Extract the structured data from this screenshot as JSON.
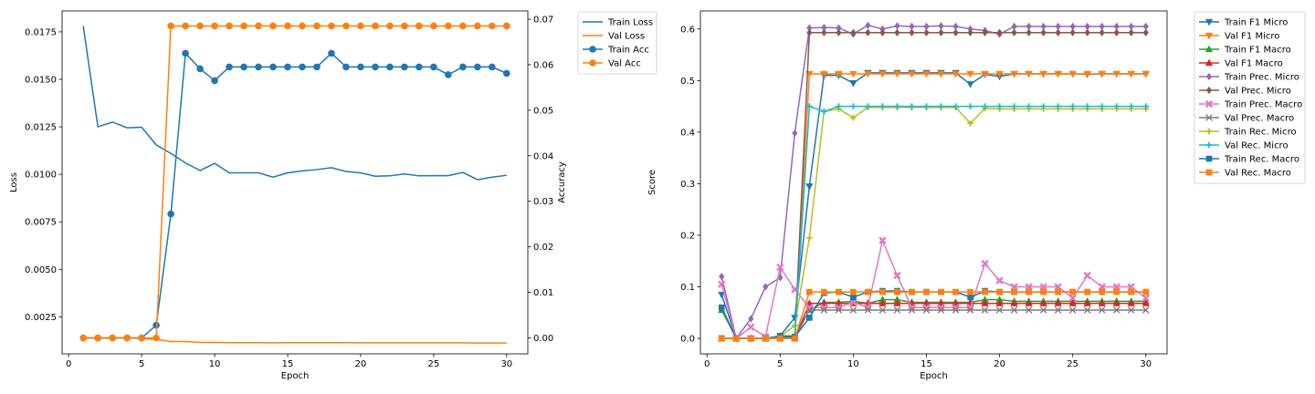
{
  "chart_data": [
    {
      "type": "line",
      "xlabel": "Epoch",
      "ylabel": "Loss",
      "y2label": "Accuracy",
      "xlim": [
        -0.45,
        31.45
      ],
      "ylim": [
        0.00055,
        0.0186
      ],
      "y2lim": [
        -0.0035,
        0.0718
      ],
      "xticks": [
        0,
        5,
        10,
        15,
        20,
        25,
        30
      ],
      "yticks": [
        0.0025,
        0.005,
        0.0075,
        0.01,
        0.0125,
        0.015,
        0.0175
      ],
      "ytick_labels": [
        "0.0025",
        "0.0050",
        "0.0075",
        "0.0100",
        "0.0125",
        "0.0150",
        "0.0175"
      ],
      "y2ticks": [
        0,
        0.01,
        0.02,
        0.03,
        0.04,
        0.05,
        0.06,
        0.07
      ],
      "y2tick_labels": [
        "0.00",
        "0.01",
        "0.02",
        "0.03",
        "0.04",
        "0.05",
        "0.06",
        "0.07"
      ],
      "legend_position": "outside upper right",
      "x": [
        1,
        2,
        3,
        4,
        5,
        6,
        7,
        8,
        9,
        10,
        11,
        12,
        13,
        14,
        15,
        16,
        17,
        18,
        19,
        20,
        21,
        22,
        23,
        24,
        25,
        26,
        27,
        28,
        29,
        30
      ],
      "series": [
        {
          "name": "Train Loss",
          "axis": "left",
          "color": "#1f77b4",
          "marker": "none",
          "values": [
            0.0178,
            0.0125,
            0.01275,
            0.01245,
            0.01248,
            0.01155,
            0.0111,
            0.0106,
            0.0102,
            0.01058,
            0.01008,
            0.01008,
            0.01008,
            0.00985,
            0.01008,
            0.01018,
            0.01025,
            0.01035,
            0.01015,
            0.01008,
            0.0099,
            0.00992,
            0.01002,
            0.00992,
            0.00993,
            0.00993,
            0.0101,
            0.00972,
            0.00985,
            0.00995
          ]
        },
        {
          "name": "Val Loss",
          "axis": "left",
          "color": "#ff7f0e",
          "marker": "none",
          "values": [
            0.00138,
            0.00138,
            0.00138,
            0.0014,
            0.00135,
            0.00132,
            0.0012,
            0.0012,
            0.00115,
            0.00115,
            0.00114,
            0.00114,
            0.00114,
            0.00113,
            0.00114,
            0.00114,
            0.00114,
            0.00114,
            0.00114,
            0.00113,
            0.00113,
            0.00113,
            0.00113,
            0.00113,
            0.00113,
            0.00113,
            0.00113,
            0.00112,
            0.00112,
            0.00112
          ]
        },
        {
          "name": "Train Acc",
          "axis": "right",
          "color": "#1f77b4",
          "marker": "o",
          "values": [
            0,
            0,
            0,
            0,
            0,
            0.0028,
            0.0272,
            0.0625,
            0.0591,
            0.0565,
            0.0595,
            0.0595,
            0.0595,
            0.0595,
            0.0595,
            0.0595,
            0.0595,
            0.0625,
            0.0595,
            0.0595,
            0.0595,
            0.0595,
            0.0595,
            0.0595,
            0.0595,
            0.0578,
            0.0595,
            0.0595,
            0.0595,
            0.0581
          ]
        },
        {
          "name": "Val Acc",
          "axis": "right",
          "color": "#ff7f0e",
          "marker": "o",
          "values": [
            0,
            0,
            0,
            0,
            0,
            0,
            0.0685,
            0.0685,
            0.0685,
            0.0685,
            0.0685,
            0.0685,
            0.0685,
            0.0685,
            0.0685,
            0.0685,
            0.0685,
            0.0685,
            0.0685,
            0.0685,
            0.0685,
            0.0685,
            0.0685,
            0.0685,
            0.0685,
            0.0685,
            0.0685,
            0.0685,
            0.0685,
            0.0685
          ]
        }
      ]
    },
    {
      "type": "line",
      "xlabel": "Epoch",
      "ylabel": "Score",
      "xlim": [
        -0.45,
        31.45
      ],
      "ylim": [
        -0.03,
        0.635
      ],
      "xticks": [
        0,
        5,
        10,
        15,
        20,
        25,
        30
      ],
      "yticks": [
        0,
        0.1,
        0.2,
        0.3,
        0.4,
        0.5,
        0.6
      ],
      "ytick_labels": [
        "0.0",
        "0.1",
        "0.2",
        "0.3",
        "0.4",
        "0.5",
        "0.6"
      ],
      "legend_position": "outside upper right",
      "x": [
        1,
        2,
        3,
        4,
        5,
        6,
        7,
        8,
        9,
        10,
        11,
        12,
        13,
        14,
        15,
        16,
        17,
        18,
        19,
        20,
        21,
        22,
        23,
        24,
        25,
        26,
        27,
        28,
        29,
        30
      ],
      "series": [
        {
          "name": "Train F1 Micro",
          "color": "#1f77b4",
          "marker": "tri_down",
          "values": [
            0.085,
            0,
            0,
            0,
            0.005,
            0.04,
            0.295,
            0.51,
            0.51,
            0.495,
            0.515,
            0.515,
            0.515,
            0.515,
            0.515,
            0.515,
            0.515,
            0.493,
            0.512,
            0.508,
            0.513,
            0.513,
            0.513,
            0.513,
            0.513,
            0.512,
            0.513,
            0.513,
            0.513,
            0.513
          ]
        },
        {
          "name": "Val F1 Micro",
          "color": "#ff7f0e",
          "marker": "tri_down",
          "values": [
            0,
            0,
            0,
            0,
            0,
            0,
            0.513,
            0.513,
            0.513,
            0.513,
            0.513,
            0.513,
            0.513,
            0.513,
            0.513,
            0.513,
            0.513,
            0.513,
            0.513,
            0.513,
            0.513,
            0.513,
            0.513,
            0.513,
            0.513,
            0.513,
            0.513,
            0.513,
            0.513,
            0.513
          ]
        },
        {
          "name": "Train F1 Macro",
          "color": "#2ca02c",
          "marker": "tri_up",
          "values": [
            0.055,
            0,
            0,
            0,
            0.005,
            0.005,
            0.055,
            0.07,
            0.07,
            0.072,
            0.068,
            0.075,
            0.075,
            0.07,
            0.07,
            0.07,
            0.07,
            0.07,
            0.075,
            0.075,
            0.072,
            0.072,
            0.072,
            0.072,
            0.072,
            0.072,
            0.072,
            0.072,
            0.072,
            0.072
          ]
        },
        {
          "name": "Val F1 Macro",
          "color": "#d62728",
          "marker": "tri_up",
          "values": [
            0,
            0,
            0,
            0,
            0,
            0,
            0.068,
            0.068,
            0.068,
            0.068,
            0.068,
            0.068,
            0.068,
            0.068,
            0.068,
            0.068,
            0.068,
            0.068,
            0.068,
            0.068,
            0.068,
            0.068,
            0.068,
            0.068,
            0.068,
            0.068,
            0.068,
            0.068,
            0.068,
            0.068
          ]
        },
        {
          "name": "Train Prec. Micro",
          "color": "#9467bd",
          "marker": "diamond",
          "values": [
            0.12,
            0,
            0.038,
            0.1,
            0.118,
            0.398,
            0.602,
            0.603,
            0.602,
            0.59,
            0.607,
            0.6,
            0.606,
            0.605,
            0.605,
            0.606,
            0.605,
            0.6,
            0.597,
            0.59,
            0.605,
            0.605,
            0.605,
            0.605,
            0.605,
            0.605,
            0.605,
            0.605,
            0.605,
            0.605
          ]
        },
        {
          "name": "Val Prec. Micro",
          "color": "#8c564b",
          "marker": "diamond",
          "values": [
            0,
            0,
            0,
            0,
            0,
            0,
            0.593,
            0.593,
            0.593,
            0.593,
            0.593,
            0.593,
            0.593,
            0.593,
            0.593,
            0.593,
            0.593,
            0.593,
            0.593,
            0.593,
            0.593,
            0.593,
            0.593,
            0.593,
            0.593,
            0.593,
            0.593,
            0.593,
            0.593,
            0.593
          ]
        },
        {
          "name": "Train Prec. Macro",
          "color": "#e377c2",
          "marker": "X",
          "values": [
            0.105,
            0,
            0.022,
            0.003,
            0.138,
            0.095,
            0.06,
            0.06,
            0.06,
            0.07,
            0.06,
            0.19,
            0.122,
            0.06,
            0.06,
            0.06,
            0.06,
            0.06,
            0.145,
            0.112,
            0.1,
            0.1,
            0.1,
            0.1,
            0.078,
            0.122,
            0.1,
            0.1,
            0.1,
            0.078
          ]
        },
        {
          "name": "Val Prec. Macro",
          "color": "#7f7f7f",
          "marker": "x",
          "values": [
            0,
            0,
            0,
            0,
            0,
            0,
            0.055,
            0.055,
            0.055,
            0.055,
            0.055,
            0.055,
            0.055,
            0.055,
            0.055,
            0.055,
            0.055,
            0.055,
            0.055,
            0.055,
            0.055,
            0.055,
            0.055,
            0.055,
            0.055,
            0.055,
            0.055,
            0.055,
            0.055,
            0.055
          ]
        },
        {
          "name": "Train Rec. Micro",
          "color": "#bcbd22",
          "marker": "plus",
          "values": [
            0.06,
            0,
            0,
            0,
            0.003,
            0.025,
            0.195,
            0.44,
            0.445,
            0.428,
            0.448,
            0.448,
            0.448,
            0.448,
            0.448,
            0.448,
            0.448,
            0.417,
            0.446,
            0.445,
            0.445,
            0.445,
            0.445,
            0.445,
            0.445,
            0.445,
            0.445,
            0.445,
            0.445,
            0.445
          ]
        },
        {
          "name": "Val Rec. Micro",
          "color": "#17becf",
          "marker": "plus",
          "values": [
            0,
            0,
            0,
            0,
            0,
            0,
            0.45,
            0.44,
            0.45,
            0.45,
            0.45,
            0.45,
            0.45,
            0.45,
            0.45,
            0.45,
            0.45,
            0.45,
            0.45,
            0.45,
            0.45,
            0.45,
            0.45,
            0.45,
            0.45,
            0.45,
            0.45,
            0.45,
            0.45,
            0.45
          ]
        },
        {
          "name": "Train Rec. Macro",
          "color": "#1f77b4",
          "marker": "square",
          "values": [
            0.06,
            0,
            0,
            0,
            0.003,
            0.003,
            0.04,
            0.088,
            0.09,
            0.08,
            0.09,
            0.092,
            0.092,
            0.09,
            0.09,
            0.09,
            0.09,
            0.08,
            0.092,
            0.09,
            0.09,
            0.09,
            0.09,
            0.09,
            0.09,
            0.09,
            0.09,
            0.09,
            0.09,
            0.09
          ]
        },
        {
          "name": "Val Rec. Macro",
          "color": "#ff7f0e",
          "marker": "square",
          "values": [
            0,
            0,
            0,
            0,
            0,
            0,
            0.09,
            0.09,
            0.09,
            0.09,
            0.09,
            0.09,
            0.09,
            0.09,
            0.09,
            0.09,
            0.09,
            0.09,
            0.09,
            0.09,
            0.09,
            0.09,
            0.09,
            0.09,
            0.09,
            0.09,
            0.09,
            0.09,
            0.09,
            0.09
          ]
        }
      ]
    }
  ]
}
